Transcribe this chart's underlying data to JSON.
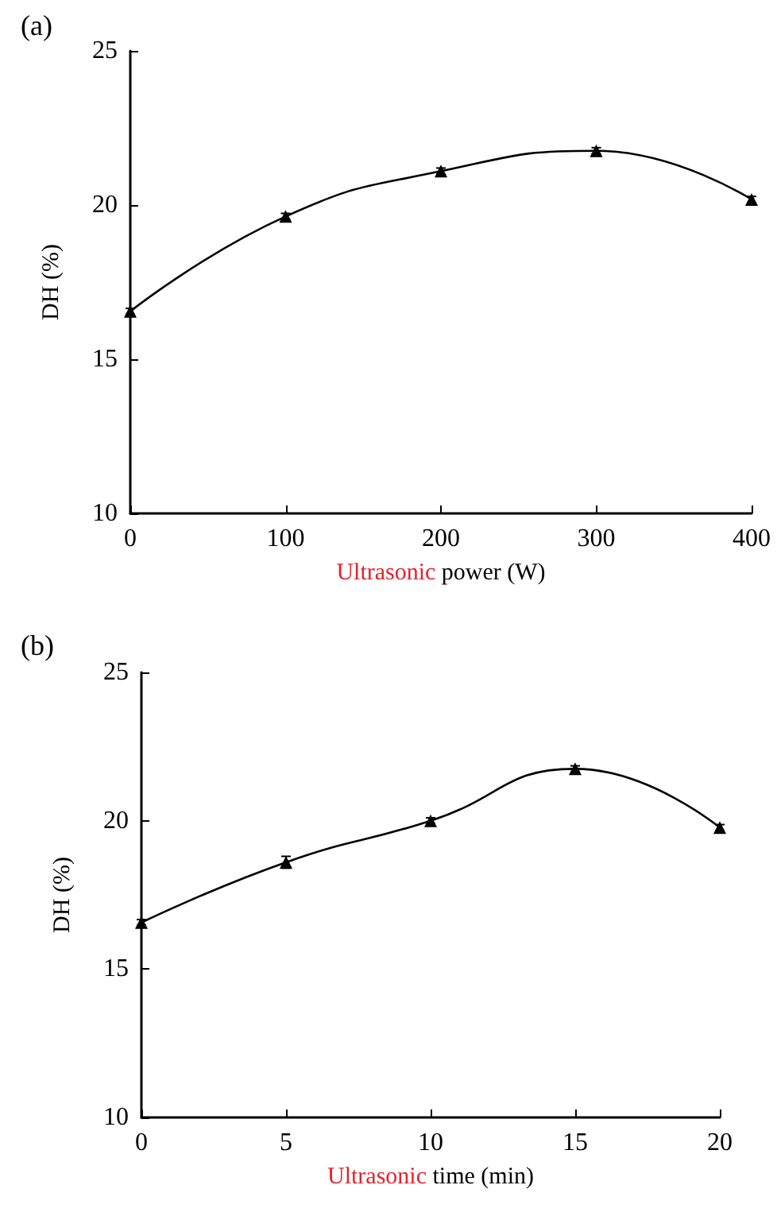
{
  "chart_data": [
    {
      "type": "line",
      "title": "(a)",
      "xlabel": "Ultrasonic power (W)",
      "ylabel": "DH (%)",
      "x": [
        0,
        100,
        200,
        300,
        400
      ],
      "series": [
        {
          "color": "#000000",
          "values": [
            16.55,
            19.63,
            21.1,
            21.76,
            20.18
          ],
          "errors": [
            0.1,
            0.1,
            0.1,
            0.1,
            0.1
          ]
        }
      ],
      "xlim": [
        0,
        400
      ],
      "xticks": [
        0,
        100,
        200,
        300,
        400
      ],
      "ylim": [
        10,
        25
      ],
      "yticks": [
        10,
        15,
        20,
        25
      ],
      "grid": false,
      "marker": "triangle",
      "line_style": "solid"
    },
    {
      "type": "line",
      "title": "(b)",
      "xlabel": "Ultrasonic time (min)",
      "ylabel": "DH (%)",
      "x": [
        0,
        5,
        10,
        15,
        20
      ],
      "series": [
        {
          "color": "#000000",
          "values": [
            16.57,
            18.6,
            20.0,
            21.75,
            19.77
          ],
          "errors": [
            0.1,
            0.2,
            0.1,
            0.1,
            0.1
          ]
        }
      ],
      "xlim": [
        0,
        20
      ],
      "xticks": [
        0,
        5,
        10,
        15,
        20
      ],
      "ylim": [
        10,
        25
      ],
      "yticks": [
        10,
        15,
        20,
        25
      ],
      "grid": false,
      "marker": "triangle",
      "line_style": "solid"
    }
  ]
}
